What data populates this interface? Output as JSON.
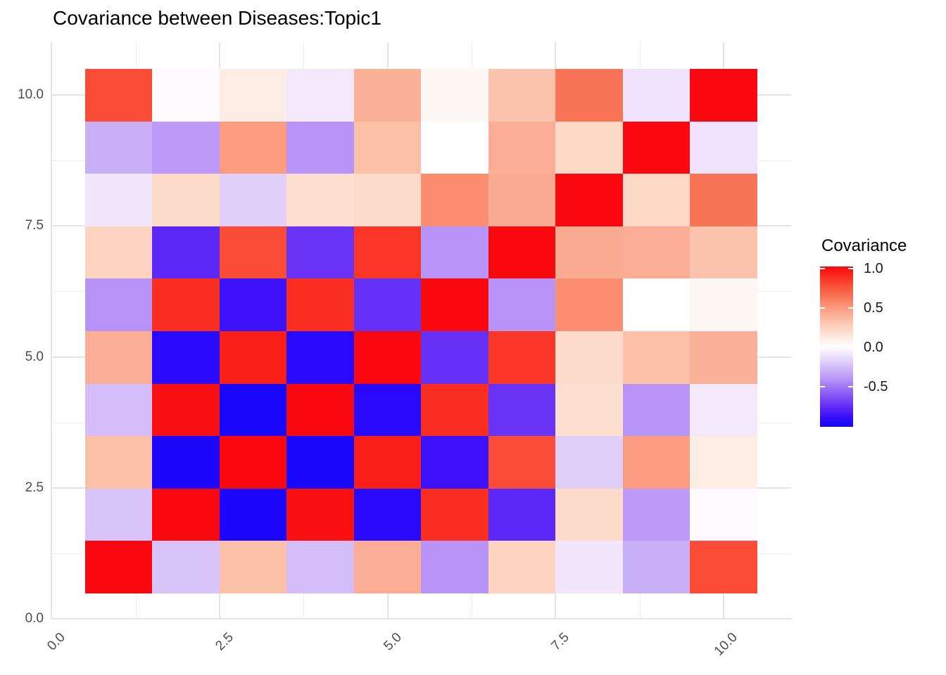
{
  "title": "Covariance between Diseases:Topic1",
  "chart_data": {
    "type": "heatmap",
    "x_categories": [
      1,
      2,
      3,
      4,
      5,
      6,
      7,
      8,
      9,
      10
    ],
    "y_categories": [
      1,
      2,
      3,
      4,
      5,
      6,
      7,
      8,
      9,
      10
    ],
    "matrix_note": "rows ordered bottom (y=1) to top (y=10); columns left (x=1) to right (x=10)",
    "matrix": [
      [
        1.0,
        -0.22,
        0.33,
        -0.25,
        0.41,
        -0.41,
        0.24,
        -0.1,
        -0.31,
        0.78
      ],
      [
        -0.22,
        1.0,
        -0.96,
        0.97,
        -0.92,
        0.87,
        -0.76,
        0.21,
        -0.39,
        -0.02
      ],
      [
        0.33,
        -0.96,
        1.0,
        -0.97,
        0.92,
        -0.86,
        0.78,
        -0.18,
        0.48,
        0.1
      ],
      [
        -0.25,
        0.97,
        -0.97,
        1.0,
        -0.92,
        0.87,
        -0.72,
        0.19,
        -0.41,
        -0.09
      ],
      [
        0.41,
        -0.92,
        0.92,
        -0.92,
        1.0,
        -0.73,
        0.85,
        0.21,
        0.33,
        0.4
      ],
      [
        -0.41,
        0.87,
        -0.86,
        0.87,
        -0.73,
        1.0,
        -0.41,
        0.53,
        0.0,
        0.04
      ],
      [
        0.24,
        -0.76,
        0.78,
        -0.72,
        0.85,
        -0.41,
        1.0,
        0.42,
        0.41,
        0.31
      ],
      [
        -0.1,
        0.21,
        -0.18,
        0.19,
        0.21,
        0.53,
        0.42,
        1.0,
        0.22,
        0.62
      ],
      [
        -0.31,
        -0.39,
        0.48,
        -0.41,
        0.33,
        0.0,
        0.41,
        0.22,
        1.0,
        -0.11
      ],
      [
        0.78,
        -0.02,
        0.1,
        -0.09,
        0.4,
        0.04,
        0.31,
        0.62,
        -0.11,
        1.0
      ]
    ],
    "title": "Covariance between Diseases:Topic1",
    "xlabel": "",
    "ylabel": "",
    "xlim": [
      0,
      11
    ],
    "ylim": [
      0,
      11
    ],
    "x_tick_values": [
      0,
      2.5,
      5,
      7.5,
      10
    ],
    "x_tick_labels": [
      "0.0",
      "2.5",
      "5.0",
      "7.5",
      "10.0"
    ],
    "y_tick_values": [
      0,
      2.5,
      5,
      7.5,
      10
    ],
    "y_tick_labels": [
      "0.0",
      "2.5",
      "5.0",
      "7.5",
      "10.0"
    ],
    "grid": true,
    "minor_grid_values": [
      1.25,
      3.75,
      6.25,
      8.75
    ],
    "legend": {
      "title": "Covariance",
      "position": "right",
      "tick_labels": [
        "1.0",
        "0.5",
        "0.0",
        "-0.5"
      ],
      "tick_values": [
        1.0,
        0.5,
        0.0,
        -0.5
      ],
      "range": [
        -1.0,
        1.0
      ],
      "high_color": "#fa0810",
      "mid_color": "#ffffff",
      "low_color": "#0f05fb"
    }
  }
}
